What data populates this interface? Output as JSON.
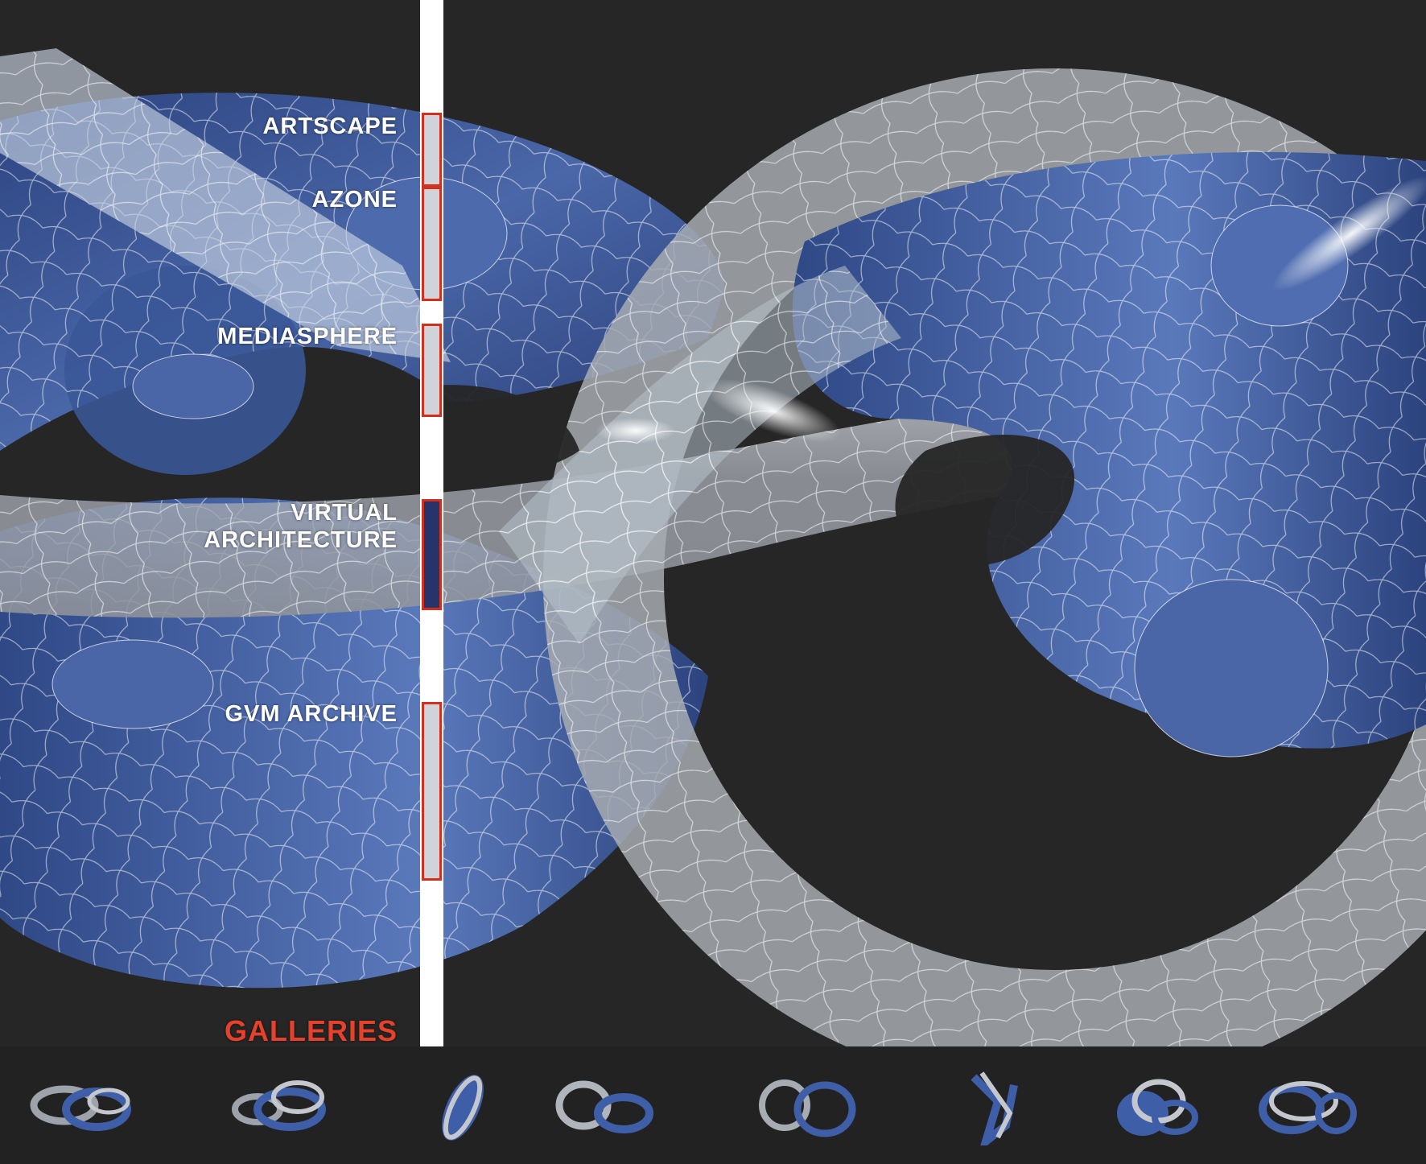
{
  "menu": {
    "items": [
      {
        "label": "ARTSCAPE"
      },
      {
        "label": "AZONE"
      },
      {
        "label": "MEDIASPHERE"
      },
      {
        "label": "VIRTUAL",
        "label2": "ARCHITECTURE"
      },
      {
        "label": "GVM ARCHIVE"
      }
    ],
    "section_title": "GALLERIES",
    "active_index": 3
  },
  "colors": {
    "background": "#262626",
    "accent": "#e5412b",
    "blue_surface": "#3d5a9c",
    "glass_surface": "#c8ccd2"
  },
  "thumbnails": [
    {
      "icon": "torus-pair-thumbnail-1"
    },
    {
      "icon": "torus-pair-thumbnail-2"
    },
    {
      "icon": "twisted-form-thumbnail-3"
    },
    {
      "icon": "torus-pair-thumbnail-4"
    },
    {
      "icon": "torus-pair-thumbnail-5"
    },
    {
      "icon": "twisted-form-thumbnail-6"
    },
    {
      "icon": "torus-cluster-thumbnail-7"
    },
    {
      "icon": "torus-pair-thumbnail-8"
    }
  ]
}
